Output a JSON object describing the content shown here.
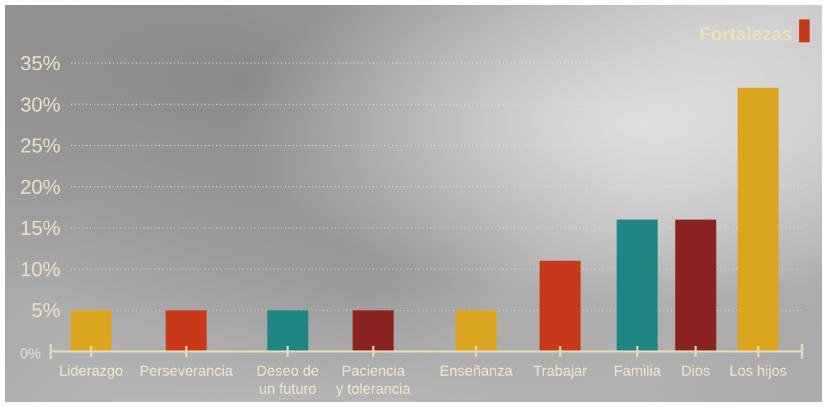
{
  "chart_data": {
    "type": "bar",
    "categories": [
      "Liderazgo",
      "Perseverancia",
      "Deseo de un futuro",
      "Paciencia y tolerancia",
      "Enseñanza",
      "Trabajar",
      "Familia",
      "Dios",
      "Los hijos"
    ],
    "category_lines": [
      [
        "Liderazgo"
      ],
      [
        "Perseverancia"
      ],
      [
        "Deseo de",
        "un futuro"
      ],
      [
        "Paciencia",
        "y tolerancia"
      ],
      [
        "Enseñanza"
      ],
      [
        "Trabajar"
      ],
      [
        "Familia"
      ],
      [
        "Dios"
      ],
      [
        "Los hijos"
      ]
    ],
    "series": [
      {
        "name": "Fortalezas",
        "values": [
          5,
          5,
          5,
          5,
          5,
          11,
          16,
          16,
          32
        ],
        "unit": "%"
      }
    ],
    "bar_colors": [
      "#dba520",
      "#c8391a",
      "#1f8585",
      "#8a2320",
      "#dba520",
      "#c8391a",
      "#1f8585",
      "#8a2320",
      "#dba520"
    ],
    "ylim": [
      0,
      35
    ],
    "yticks": [
      "0%",
      "5%",
      "10%",
      "15%",
      "20%",
      "25%",
      "30%",
      "35%"
    ],
    "ytick_values": [
      0,
      5,
      10,
      15,
      20,
      25,
      30,
      35
    ],
    "grid": true,
    "legend": {
      "label": "Fortalezas",
      "color": "#c8391a",
      "placement": "top-right"
    },
    "title": "",
    "xlabel": "",
    "ylabel": ""
  }
}
